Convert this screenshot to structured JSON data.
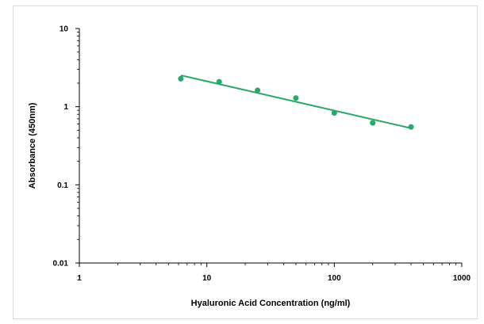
{
  "chart_data": {
    "type": "scatter",
    "title": "",
    "xlabel": "Hyaluronic Acid Concentration (ng/ml)",
    "ylabel": "Absorbance (450nm)",
    "x_scale": "log",
    "y_scale": "log",
    "xlim": [
      1,
      1000
    ],
    "ylim": [
      0.01,
      10
    ],
    "x_ticks": [
      1,
      10,
      100,
      1000
    ],
    "x_tick_labels": [
      "1",
      "10",
      "100",
      "1000"
    ],
    "y_ticks": [
      0.01,
      0.1,
      1,
      10
    ],
    "y_tick_labels": [
      "0.01",
      "0.1",
      "1",
      "10"
    ],
    "grid": false,
    "legend": "none",
    "colors": {
      "series": "#2aa86a",
      "axis": "#000000"
    },
    "series": [
      {
        "points": [
          {
            "x": 6.25,
            "y": 2.28
          },
          {
            "x": 12.5,
            "y": 2.08
          },
          {
            "x": 25,
            "y": 1.62
          },
          {
            "x": 50,
            "y": 1.29
          },
          {
            "x": 100,
            "y": 0.83
          },
          {
            "x": 200,
            "y": 0.62
          },
          {
            "x": 400,
            "y": 0.55
          }
        ],
        "trendline": {
          "type": "power",
          "x_range": [
            6.25,
            400
          ],
          "y_start": 2.52,
          "y_end": 0.53
        }
      }
    ]
  }
}
